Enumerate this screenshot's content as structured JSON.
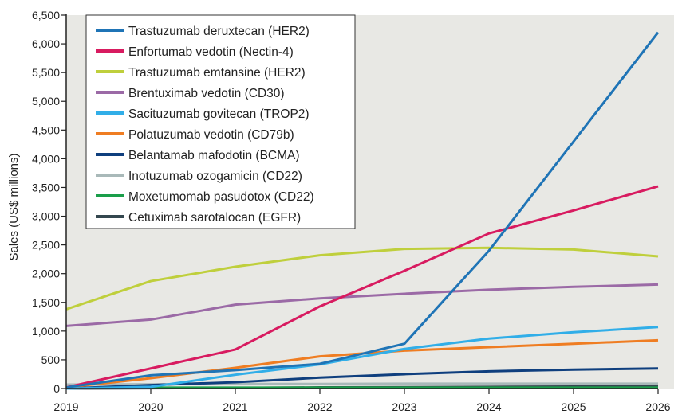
{
  "chart_data": {
    "type": "line",
    "title": "",
    "xlabel": "",
    "ylabel": "Sales (US$ millions)",
    "x": [
      2019,
      2020,
      2021,
      2022,
      2023,
      2024,
      2025,
      2026
    ],
    "x_tick_labels": [
      "2019",
      "2020",
      "2021",
      "2022",
      "2023",
      "2024",
      "2025",
      "2026"
    ],
    "ylim": [
      0,
      6500
    ],
    "y_ticks": [
      0,
      500,
      1000,
      1500,
      2000,
      2500,
      3000,
      3500,
      4000,
      4500,
      5000,
      5500,
      6000,
      6500
    ],
    "y_tick_labels": [
      "0",
      "500",
      "1,000",
      "1,500",
      "2,000",
      "2,500",
      "3,000",
      "3,500",
      "4,000",
      "4,500",
      "5,000",
      "5,500",
      "6,000",
      "6,500"
    ],
    "grid": false,
    "legend_position": "top-left",
    "background_color": "#e8e8e4",
    "series": [
      {
        "name": "Trastuzumab deruxtecan (HER2)",
        "color": "#1f74b6",
        "values": [
          20,
          230,
          320,
          430,
          780,
          2400,
          4300,
          6200
        ]
      },
      {
        "name": "Enfortumab vedotin (Nectin-4)",
        "color": "#d81b60",
        "values": [
          20,
          350,
          680,
          1430,
          2050,
          2700,
          3100,
          3520
        ]
      },
      {
        "name": "Trastuzumab emtansine (HER2)",
        "color": "#bfcf3c",
        "values": [
          1380,
          1870,
          2120,
          2320,
          2430,
          2450,
          2420,
          2300
        ]
      },
      {
        "name": "Brentuximab vedotin (CD30)",
        "color": "#9b6aa6",
        "values": [
          1090,
          1200,
          1460,
          1570,
          1650,
          1720,
          1770,
          1810
        ]
      },
      {
        "name": "Sacituzumab govitecan (TROP2)",
        "color": "#31aee8",
        "values": [
          0,
          30,
          240,
          420,
          690,
          870,
          980,
          1070
        ]
      },
      {
        "name": "Polatuzumab vedotin (CD79b)",
        "color": "#ef7d22",
        "values": [
          20,
          180,
          360,
          560,
          660,
          720,
          780,
          840
        ]
      },
      {
        "name": "Belantamab mafodotin (BCMA)",
        "color": "#0f3f7e",
        "values": [
          0,
          60,
          110,
          190,
          250,
          300,
          330,
          350
        ]
      },
      {
        "name": "Inotuzumab ozogamicin (CD22)",
        "color": "#a9b9b9",
        "values": [
          70,
          75,
          80,
          80,
          85,
          85,
          85,
          85
        ]
      },
      {
        "name": "Moxetumomab pasudotox (CD22)",
        "color": "#1a9e4a",
        "values": [
          10,
          15,
          15,
          15,
          15,
          15,
          15,
          15
        ]
      },
      {
        "name": "Cetuximab sarotalocan (EGFR)",
        "color": "#34474f",
        "values": [
          0,
          5,
          10,
          20,
          25,
          30,
          35,
          40
        ]
      }
    ]
  }
}
